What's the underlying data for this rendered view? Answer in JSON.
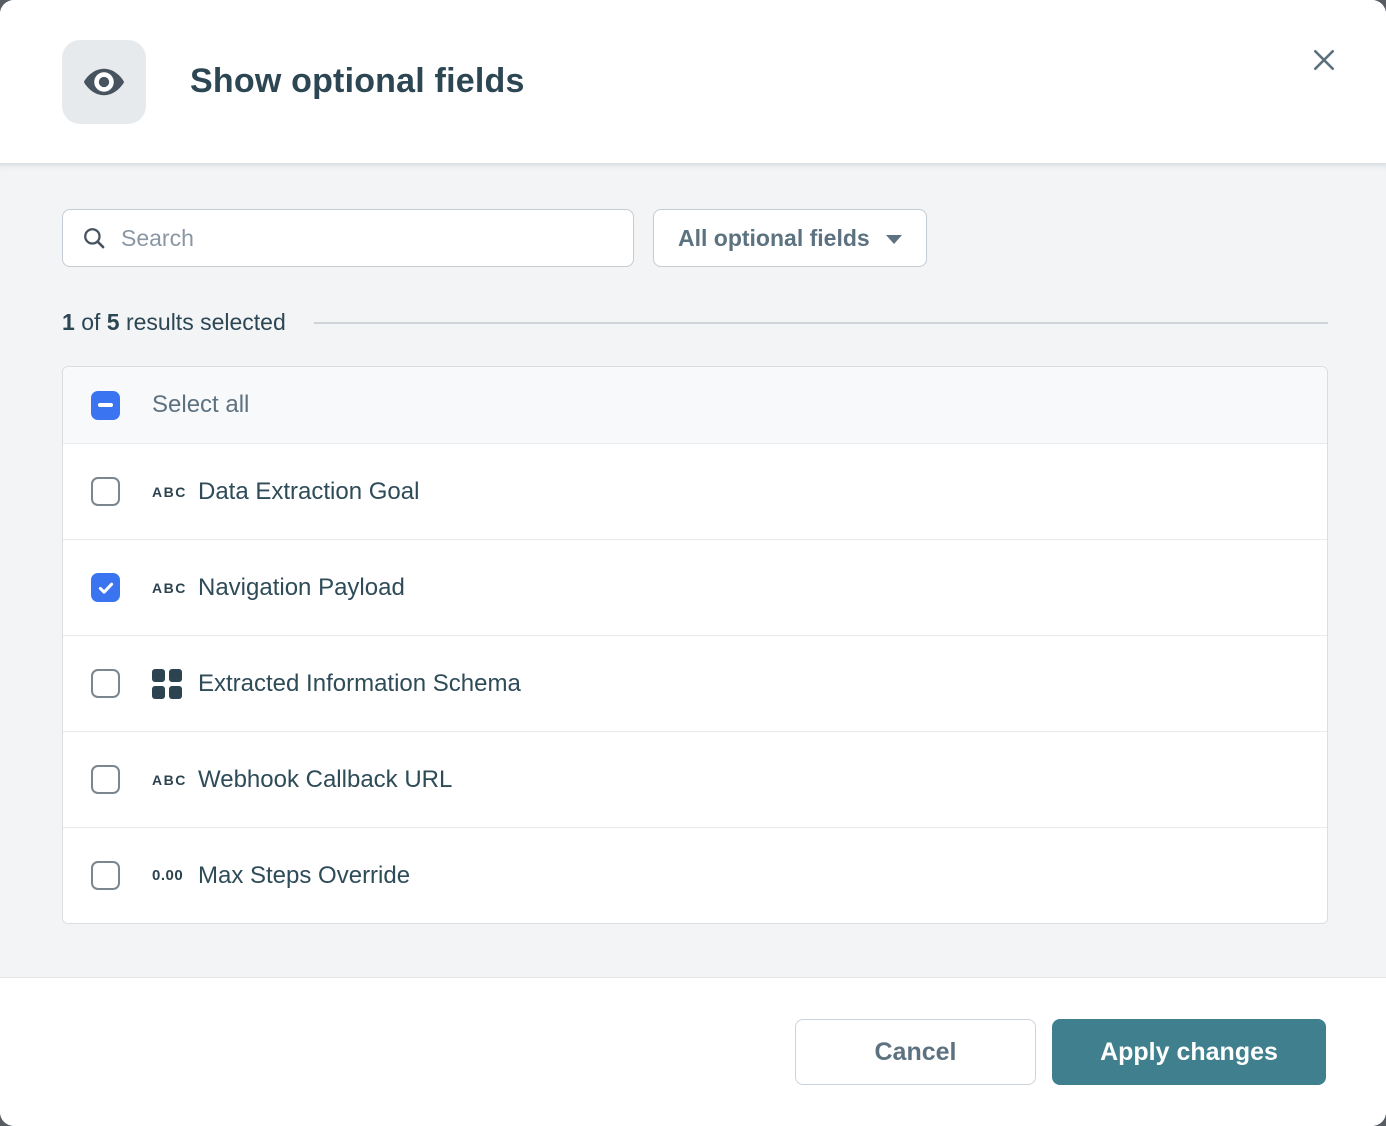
{
  "header": {
    "title": "Show optional fields"
  },
  "controls": {
    "search_placeholder": "Search",
    "filter_label": "All optional fields"
  },
  "results": {
    "count": "1",
    "of": "of",
    "total": "5",
    "suffix": "results selected"
  },
  "list": {
    "select_all_label": "Select all",
    "select_all_state": "indeterminate",
    "fields": [
      {
        "label": "Data Extraction Goal",
        "icon": "abc",
        "icon_text": "ABC",
        "checked": false
      },
      {
        "label": "Navigation Payload",
        "icon": "abc",
        "icon_text": "ABC",
        "checked": true
      },
      {
        "label": "Extracted Information Schema",
        "icon": "grid",
        "icon_text": "",
        "checked": false
      },
      {
        "label": "Webhook Callback URL",
        "icon": "abc",
        "icon_text": "ABC",
        "checked": false
      },
      {
        "label": "Max Steps Override",
        "icon": "number",
        "icon_text": "0.00",
        "checked": false
      }
    ]
  },
  "footer": {
    "cancel_label": "Cancel",
    "apply_label": "Apply changes"
  },
  "colors": {
    "accent_blue": "#3b74f0",
    "accent_teal": "#3f7f8e",
    "text_dark": "#2d4653",
    "text_secondary": "#5d7280"
  }
}
